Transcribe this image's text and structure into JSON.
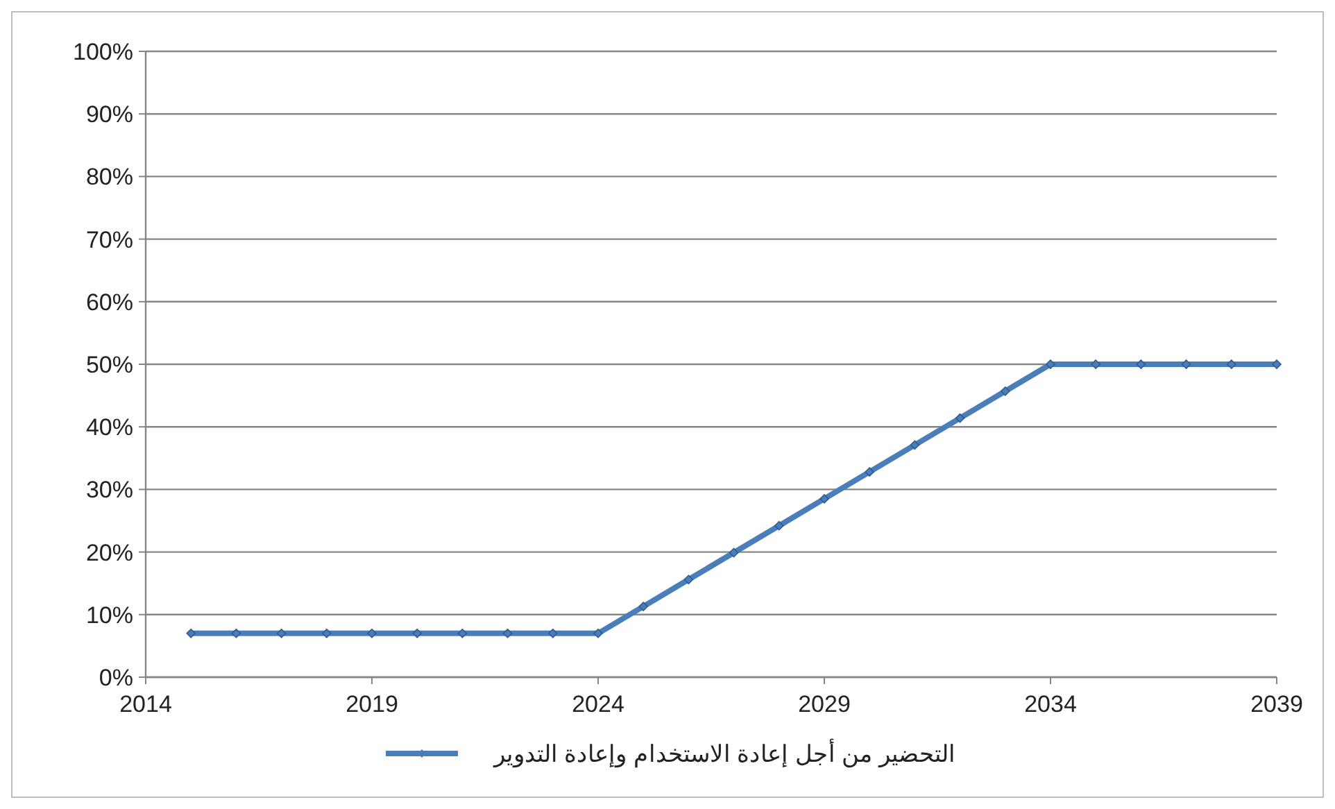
{
  "chart_data": {
    "type": "line",
    "x": [
      2015,
      2016,
      2017,
      2018,
      2019,
      2020,
      2021,
      2022,
      2023,
      2024,
      2025,
      2026,
      2027,
      2028,
      2029,
      2030,
      2031,
      2032,
      2033,
      2034,
      2035,
      2036,
      2037,
      2038,
      2039
    ],
    "series": [
      {
        "name": "التحضير من أجل إعادة الاستخدام وإعادة التدوير",
        "color": "#4a7ebb",
        "values": [
          7,
          7,
          7,
          7,
          7,
          7,
          7,
          7,
          7,
          7,
          11.3,
          15.6,
          19.9,
          24.2,
          28.5,
          32.8,
          37.1,
          41.4,
          45.7,
          50,
          50,
          50,
          50,
          50,
          50
        ]
      }
    ],
    "xlim": [
      2014,
      2039
    ],
    "xticks": [
      2014,
      2019,
      2024,
      2029,
      2034,
      2039
    ],
    "ylim": [
      0,
      100
    ],
    "yticks": [
      {
        "value": 0,
        "label": "0%"
      },
      {
        "value": 10,
        "label": "10%"
      },
      {
        "value": 20,
        "label": "20%"
      },
      {
        "value": 30,
        "label": "30%"
      },
      {
        "value": 40,
        "label": "40%"
      },
      {
        "value": 50,
        "label": "50%"
      },
      {
        "value": 60,
        "label": "60%"
      },
      {
        "value": 70,
        "label": "70%"
      },
      {
        "value": 80,
        "label": "80%"
      },
      {
        "value": 90,
        "label": "90%"
      },
      {
        "value": 100,
        "label": "100%"
      }
    ],
    "grid": "y",
    "legend": "bottom",
    "marker": "diamond",
    "line_style": "solid"
  }
}
